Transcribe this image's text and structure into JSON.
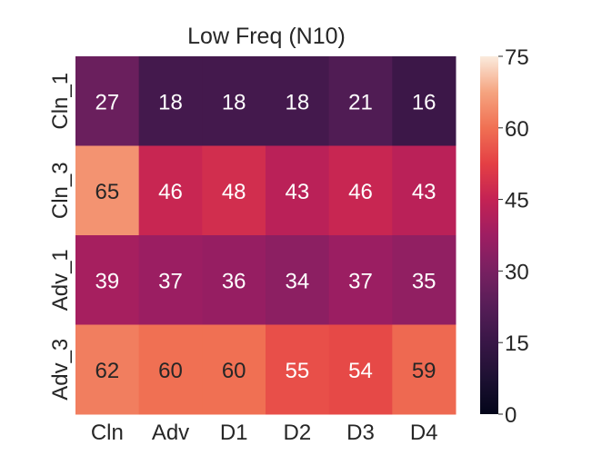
{
  "chart_data": {
    "type": "heatmap",
    "title": "Low Freq (N10)",
    "xlabel": "",
    "ylabel": "",
    "x_categories": [
      "Cln",
      "Adv",
      "D1",
      "D2",
      "D3",
      "D4"
    ],
    "y_categories": [
      "Cln_1",
      "Cln_3",
      "Adv_1",
      "Adv_3"
    ],
    "values": [
      [
        27,
        18,
        18,
        18,
        21,
        16
      ],
      [
        65,
        46,
        48,
        43,
        46,
        43
      ],
      [
        39,
        37,
        36,
        34,
        37,
        35
      ],
      [
        62,
        60,
        60,
        55,
        54,
        59
      ]
    ],
    "colorbar": {
      "min": 0,
      "max": 75,
      "ticks": [
        0,
        15,
        30,
        45,
        60,
        75
      ],
      "tick_labels": [
        "0",
        "15",
        "30",
        "45",
        "60",
        "75"
      ],
      "colormap": "rocket"
    },
    "annotations": true,
    "grid": false
  }
}
